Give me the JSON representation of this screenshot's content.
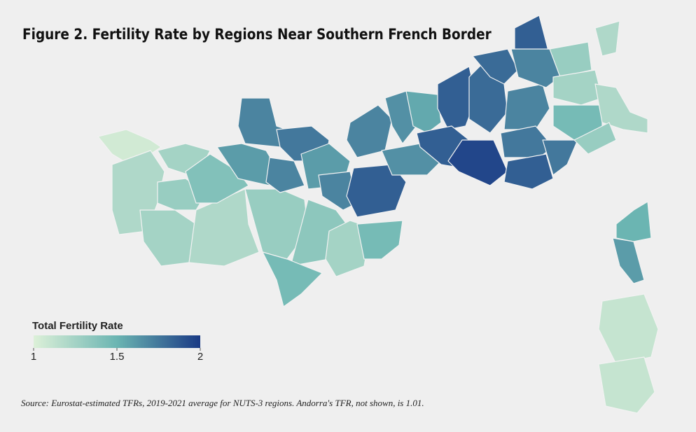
{
  "title": "Figure 2. Fertility Rate by Regions Near Southern French Border",
  "legend": {
    "title": "Total Fertility Rate",
    "ticks": [
      1,
      1.5,
      2
    ]
  },
  "map": {
    "colorlim": [
      1,
      2
    ],
    "colors": [
      "#dcf0d8",
      "#6bb5b2",
      "#1a3a85"
    ],
    "values": [
      1.05,
      1.2,
      1.25,
      1.3,
      1.25,
      1.2,
      1.4,
      1.3,
      1.35,
      1.45,
      1.25,
      1.45,
      1.6,
      1.7,
      1.75,
      1.7,
      1.6,
      1.7,
      1.7,
      1.65,
      1.85,
      1.65,
      1.55,
      1.85,
      1.85,
      1.95,
      1.8,
      1.8,
      1.7,
      1.75,
      1.85,
      1.75,
      1.85,
      1.7,
      1.3,
      1.25,
      1.45,
      1.2,
      1.2,
      1.3,
      1.5,
      1.6,
      1.1,
      1.1
    ]
  },
  "source": "Source: Eurostat-estimated TFRs, 2019-2021 average for NUTS-3 regions. Andorra's TFR, not shown, is 1.01."
}
